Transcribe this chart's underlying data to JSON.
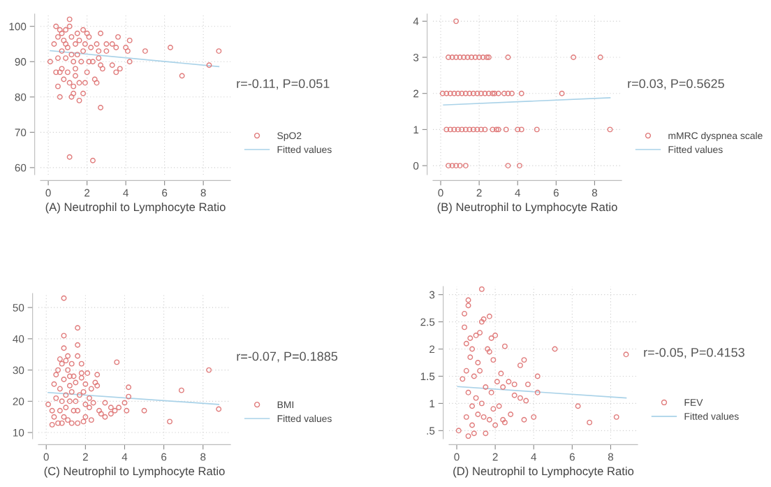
{
  "chart_data": [
    {
      "type": "scatter",
      "xlabel": "(A) Neutrophil to Lymphocyte Ratio",
      "xlim": [
        -0.4,
        9.4
      ],
      "ylim": [
        58,
        103.5
      ],
      "xticks": [
        0,
        2,
        4,
        6,
        8
      ],
      "yticks": [
        60,
        70,
        80,
        90,
        100
      ],
      "grid": true,
      "legend": "right",
      "annotations": [
        "r=-0.11, P=0.051"
      ],
      "series": [
        {
          "name": "SpO2",
          "marker": "circle",
          "color": "#e07b7b",
          "x": [
            0.1,
            0.4,
            0.3,
            0.4,
            0.5,
            0.6,
            0.5,
            0.6,
            0.7,
            0.7,
            0.8,
            0.8,
            0.9,
            0.9,
            1.0,
            1.0,
            1.1,
            1.1,
            1.1,
            1.2,
            1.2,
            1.3,
            1.3,
            1.3,
            1.4,
            1.4,
            1.5,
            1.5,
            1.6,
            1.6,
            1.6,
            1.7,
            1.8,
            1.8,
            1.8,
            1.9,
            1.9,
            2.0,
            2.0,
            2.1,
            2.1,
            2.2,
            2.3,
            2.4,
            2.5,
            2.5,
            2.7,
            2.6,
            2.6,
            2.7,
            2.8,
            2.7,
            3.0,
            3.0,
            3.3,
            3.3,
            3.5,
            3.5,
            3.6,
            3.7,
            4.0,
            4.1,
            4.2,
            4.2,
            5.0,
            6.3,
            6.9,
            8.3,
            8.8,
            1.1,
            2.3,
            0.5,
            0.7,
            1.2,
            1.4,
            0.6,
            0.9
          ],
          "values": [
            90,
            100,
            95,
            87,
            83,
            80,
            97,
            99,
            93,
            88,
            85,
            96,
            91,
            99,
            87,
            94,
            102,
            100,
            84,
            80,
            97,
            81,
            90,
            83,
            95,
            88,
            92,
            98,
            79,
            84,
            96,
            90,
            81,
            99,
            93,
            84,
            95,
            98,
            87,
            97,
            90,
            94,
            90,
            85,
            84,
            95,
            98,
            91,
            93,
            89,
            88,
            77,
            95,
            93,
            95,
            89,
            94,
            87,
            97,
            88,
            94,
            93,
            96,
            90,
            93,
            94,
            86,
            89,
            93,
            63,
            62,
            91,
            98,
            92,
            86,
            87,
            95
          ]
        },
        {
          "name": "Fitted values",
          "type": "line",
          "color": "#a9d2e8",
          "x": [
            0.1,
            8.8
          ],
          "values": [
            93.1,
            88.6
          ]
        }
      ]
    },
    {
      "type": "scatter",
      "xlabel": "(B) Neutrophil to Lymphocyte Ratio",
      "xlim": [
        -0.4,
        9.4
      ],
      "ylim": [
        -0.25,
        4.2
      ],
      "xticks": [
        0,
        2,
        4,
        6,
        8
      ],
      "yticks": [
        0,
        1,
        2,
        3,
        4
      ],
      "grid": true,
      "legend": "right",
      "annotations": [
        "r=0.03, P=0.5625"
      ],
      "series": [
        {
          "name": "mMRC dyspnea scale",
          "marker": "circle",
          "color": "#e07b7b",
          "x": [
            0.8,
            0.4,
            0.6,
            0.8,
            1.0,
            1.2,
            1.4,
            1.6,
            1.8,
            2.0,
            2.2,
            2.4,
            2.5,
            3.5,
            6.9,
            8.3,
            0.1,
            0.3,
            0.5,
            0.7,
            0.9,
            1.1,
            1.3,
            1.5,
            1.7,
            1.9,
            2.1,
            2.3,
            2.5,
            2.7,
            2.8,
            3.0,
            3.3,
            3.5,
            3.7,
            4.2,
            6.3,
            0.3,
            0.5,
            0.7,
            0.9,
            1.1,
            1.3,
            1.5,
            1.7,
            1.9,
            2.1,
            2.3,
            2.7,
            2.9,
            3.0,
            3.4,
            4.0,
            4.2,
            5.0,
            8.8,
            0.4,
            0.6,
            0.8,
            1.0,
            1.3,
            3.5,
            4.1
          ],
          "values": [
            4,
            3,
            3,
            3,
            3,
            3,
            3,
            3,
            3,
            3,
            3,
            3,
            3,
            3,
            3,
            3,
            2,
            2,
            2,
            2,
            2,
            2,
            2,
            2,
            2,
            2,
            2,
            2,
            2,
            2,
            2,
            2,
            2,
            2,
            2,
            2,
            2,
            1,
            1,
            1,
            1,
            1,
            1,
            1,
            1,
            1,
            1,
            1,
            1,
            1,
            1,
            1,
            1,
            1,
            1,
            1,
            0,
            0,
            0,
            0,
            0,
            0,
            0
          ]
        },
        {
          "name": "Fitted values",
          "type": "line",
          "color": "#a9d2e8",
          "x": [
            0.15,
            8.8
          ],
          "values": [
            1.68,
            1.88
          ]
        }
      ]
    },
    {
      "type": "scatter",
      "xlabel": "(C) Neutrophil to Lymphocyte Ratio",
      "xlim": [
        -0.4,
        9.4
      ],
      "ylim": [
        8,
        54.5
      ],
      "xticks": [
        0,
        2,
        4,
        6,
        8
      ],
      "yticks": [
        10,
        20,
        30,
        40,
        50
      ],
      "grid": true,
      "legend": "right",
      "annotations": [
        "r=-0.07, P=0.1885"
      ],
      "series": [
        {
          "name": "BMI",
          "marker": "circle",
          "color": "#e07b7b",
          "x": [
            0.1,
            0.3,
            0.3,
            0.4,
            0.4,
            0.5,
            0.5,
            0.6,
            0.6,
            0.7,
            0.7,
            0.7,
            0.8,
            0.8,
            0.8,
            0.9,
            0.9,
            0.9,
            0.9,
            0.9,
            1.0,
            1.0,
            1.0,
            1.1,
            1.1,
            1.1,
            1.2,
            1.2,
            1.2,
            1.3,
            1.3,
            1.3,
            1.4,
            1.4,
            1.5,
            1.5,
            1.6,
            1.6,
            1.6,
            1.6,
            1.6,
            1.7,
            1.8,
            1.8,
            1.8,
            1.9,
            1.9,
            2.0,
            2.0,
            2.0,
            2.1,
            2.2,
            2.2,
            2.3,
            2.3,
            2.4,
            2.5,
            2.6,
            2.6,
            2.7,
            2.8,
            3.0,
            3.0,
            3.3,
            3.3,
            3.5,
            3.6,
            3.7,
            4.0,
            4.1,
            4.2,
            4.2,
            5.0,
            6.3,
            6.9,
            8.3,
            8.8
          ],
          "values": [
            19,
            12.5,
            17,
            15,
            25.5,
            28.5,
            21,
            30,
            13,
            33.5,
            24,
            17,
            13,
            32,
            20,
            53,
            41,
            37,
            27,
            15,
            33,
            22,
            18,
            34.5,
            30,
            14,
            28,
            20,
            25,
            32,
            13,
            23,
            17,
            28,
            26,
            20,
            43.5,
            38,
            34.5,
            13,
            17,
            22,
            32,
            27.5,
            29,
            23,
            13.5,
            19,
            25.5,
            15,
            29,
            21,
            18,
            14,
            24,
            19.5,
            26,
            28.5,
            25,
            17,
            16,
            15,
            19.5,
            18,
            16,
            17,
            32.5,
            18,
            19.5,
            17,
            21.5,
            24.5,
            17,
            13.5,
            23.5,
            30,
            17.5
          ]
        },
        {
          "name": "Fitted values",
          "type": "line",
          "color": "#a9d2e8",
          "x": [
            0.1,
            8.8
          ],
          "values": [
            22.8,
            19
          ]
        }
      ]
    },
    {
      "type": "scatter",
      "xlabel": "(D) Neutrophil to Lymphocyte Ratio",
      "xlim": [
        -0.4,
        9.4
      ],
      "ylim": [
        0.35,
        3.15
      ],
      "xticks": [
        0,
        2,
        4,
        6,
        8
      ],
      "yticks": [
        {
          "value": 0.5,
          "label": ".5"
        },
        1,
        1.5,
        2,
        2.5,
        3
      ],
      "grid": true,
      "legend": "right",
      "annotations": [
        "r=-0.05, P=0.4153"
      ],
      "series": [
        {
          "name": "FEV",
          "marker": "circle",
          "color": "#e07b7b",
          "x": [
            0.1,
            0.3,
            0.4,
            0.4,
            0.5,
            0.6,
            0.6,
            0.6,
            0.5,
            0.5,
            0.6,
            0.7,
            0.7,
            0.8,
            0.8,
            0.8,
            0.9,
            0.9,
            1.0,
            1.0,
            1.1,
            1.1,
            1.2,
            1.2,
            1.3,
            1.3,
            1.3,
            1.4,
            1.4,
            1.5,
            1.5,
            1.6,
            1.7,
            1.7,
            1.7,
            1.8,
            1.8,
            1.9,
            1.9,
            2.0,
            2.0,
            2.1,
            2.2,
            2.3,
            2.4,
            2.4,
            2.5,
            2.5,
            2.7,
            2.8,
            3.0,
            3.0,
            3.3,
            3.3,
            3.5,
            3.5,
            3.6,
            3.7,
            4.0,
            4.2,
            4.2,
            5.1,
            6.3,
            6.9,
            8.3,
            8.8
          ],
          "values": [
            0.5,
            1.45,
            2.65,
            2.4,
            2.1,
            2.9,
            2.8,
            0.4,
            0.75,
            1.6,
            1.2,
            2.2,
            1.85,
            2.0,
            0.95,
            0.6,
            1.5,
            0.45,
            2.25,
            1.1,
            1.75,
            0.8,
            2.3,
            1.6,
            3.1,
            2.5,
            1.0,
            2.55,
            0.75,
            1.3,
            0.45,
            2.0,
            2.6,
            1.95,
            0.7,
            2.2,
            1.2,
            1.8,
            0.9,
            2.25,
            0.6,
            1.4,
            0.95,
            1.55,
            1.3,
            0.7,
            2.05,
            0.65,
            1.4,
            0.8,
            1.15,
            1.35,
            1.7,
            1.1,
            0.7,
            1.8,
            1.05,
            1.35,
            0.75,
            1.5,
            1.2,
            2.0,
            0.95,
            0.65,
            0.75,
            1.9
          ]
        },
        {
          "name": "Fitted values",
          "type": "line",
          "color": "#a9d2e8",
          "x": [
            0.05,
            8.8
          ],
          "values": [
            1.31,
            1.1
          ]
        }
      ]
    }
  ]
}
